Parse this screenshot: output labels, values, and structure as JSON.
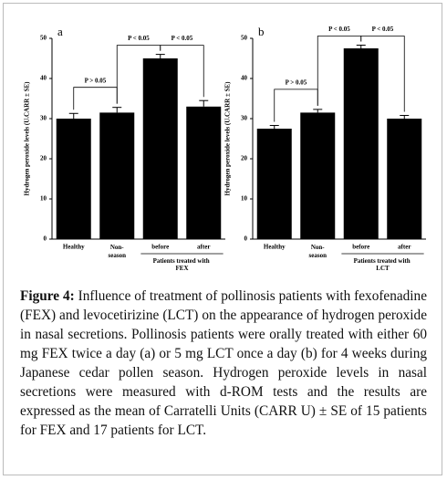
{
  "chart_data": [
    {
      "type": "bar",
      "panel": "a",
      "ylabel": "Hydrogen peroxide levels (U.CARR ± SE)",
      "categories": [
        "Healthy",
        "Non-season",
        "before",
        "after"
      ],
      "values": [
        30,
        31.5,
        45,
        33
      ],
      "errors": [
        1.3,
        1.3,
        1,
        1.5
      ],
      "color": "#000000",
      "ylim": [
        0,
        50
      ],
      "yticks": [
        0,
        10,
        20,
        30,
        40,
        50
      ],
      "group_label": "Patients treated with FEX",
      "annotations": [
        "P > 0.05",
        "P < 0.05",
        "P < 0.05"
      ]
    },
    {
      "type": "bar",
      "panel": "b",
      "ylabel": "Hydrogen peroxide levels (U.CARR ± SE)",
      "categories": [
        "Healthy",
        "Non-season",
        "before",
        "after"
      ],
      "values": [
        27.5,
        31.5,
        47.5,
        30
      ],
      "errors": [
        0.8,
        0.8,
        0.8,
        0.8
      ],
      "color": "#000000",
      "ylim": [
        0,
        50
      ],
      "yticks": [
        0,
        10,
        20,
        30,
        40,
        50
      ],
      "group_label": "Patients treated with LCT",
      "annotations": [
        "P > 0.05",
        "P < 0.05",
        "P < 0.05"
      ]
    }
  ],
  "caption": {
    "label": "Figure 4:",
    "text": "Influence of treatment of pollinosis patients with fexofenadine (FEX) and levocetirizine (LCT) on the appearance of hydrogen peroxide in nasal secretions. Pollinosis patients were orally treated with either 60 mg FEX twice a day (a) or 5 mg LCT once a day (b) for 4 weeks during Japanese cedar pollen season. Hydrogen peroxide levels in nasal secretions were measured with d-ROM tests and the results are expressed as the mean of Carratelli Units (CARR U) ± SE of 15 patients for FEX and 17 patients for LCT."
  }
}
